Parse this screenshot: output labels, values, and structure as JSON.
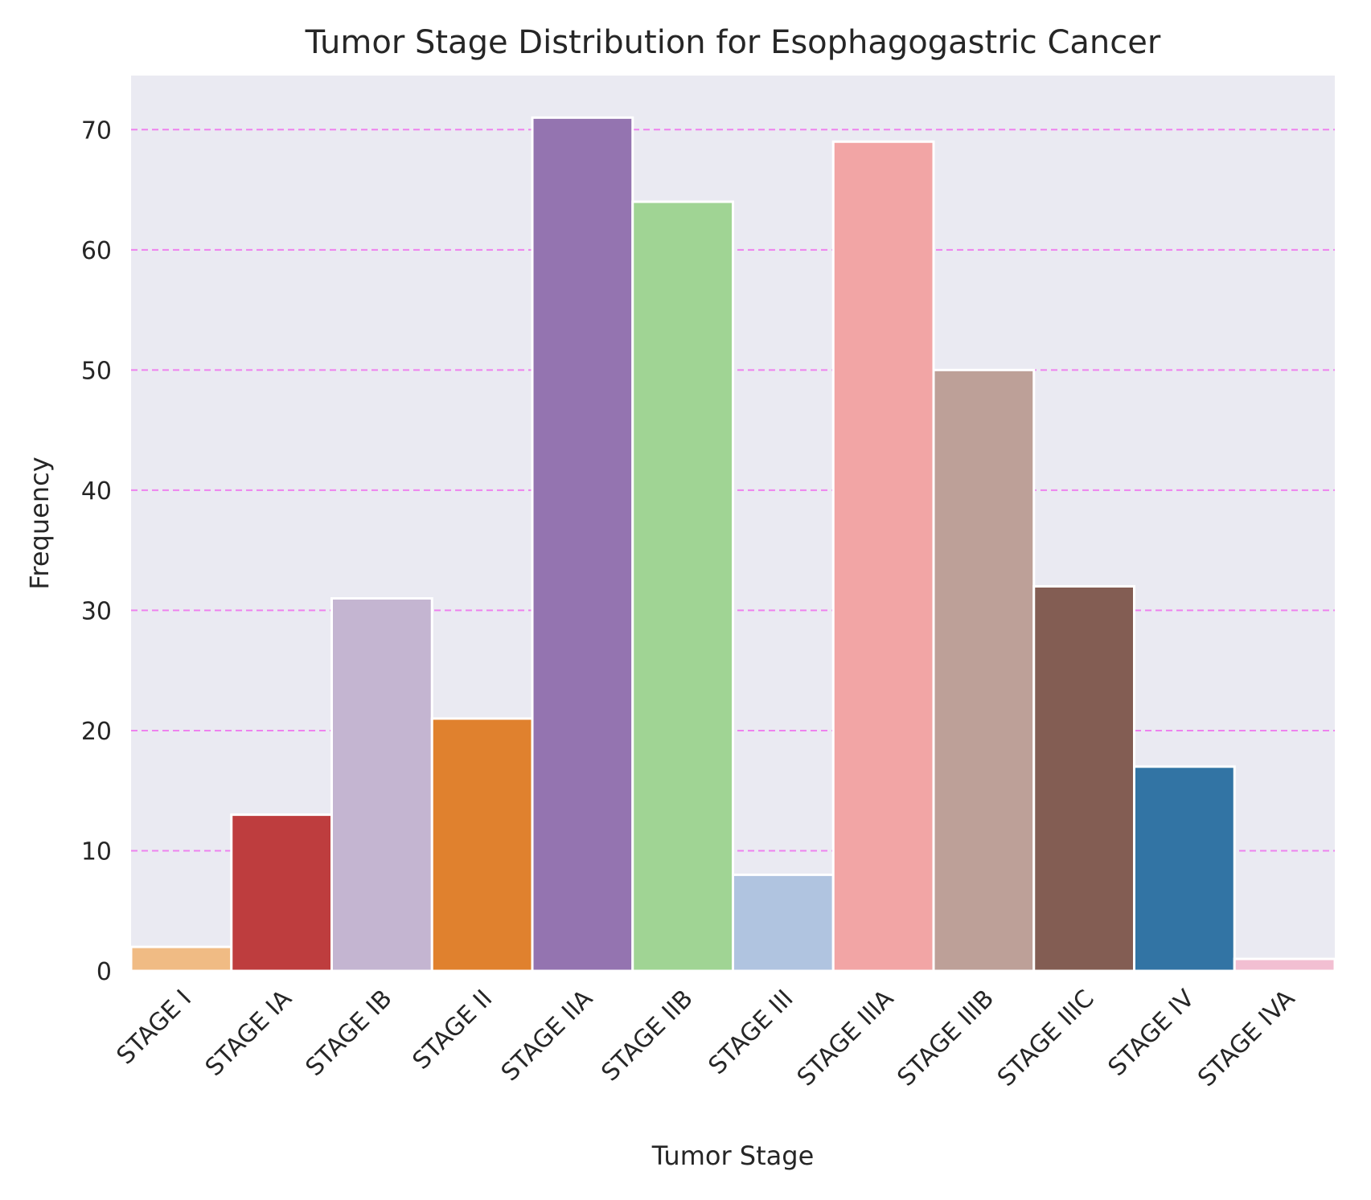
{
  "chart_data": {
    "type": "bar",
    "title": "Tumor Stage Distribution for Esophagogastric Cancer",
    "xlabel": "Tumor Stage",
    "ylabel": "Frequency",
    "categories": [
      "STAGE I",
      "STAGE IA",
      "STAGE IB",
      "STAGE II",
      "STAGE IIA",
      "STAGE IIB",
      "STAGE III",
      "STAGE IIIA",
      "STAGE IIIB",
      "STAGE IIIC",
      "STAGE IV",
      "STAGE IVA"
    ],
    "values": [
      2,
      13,
      31,
      21,
      71,
      64,
      8,
      69,
      50,
      32,
      17,
      1
    ],
    "colors": [
      "#f0bb84",
      "#be3d3e",
      "#c4b5d1",
      "#e0812e",
      "#9474b0",
      "#a0d494",
      "#b0c4e0",
      "#f2a5a5",
      "#bda098",
      "#835d53",
      "#3274a4",
      "#f2bfd2"
    ],
    "ylim": [
      0,
      74.5
    ],
    "yticks": [
      0,
      10,
      20,
      30,
      40,
      50,
      60,
      70
    ],
    "grid": true,
    "grid_style": "dashed",
    "grid_color": "#ee82ee",
    "background_color": "#eaeaf2",
    "bar_edge_color": "#ffffff"
  }
}
